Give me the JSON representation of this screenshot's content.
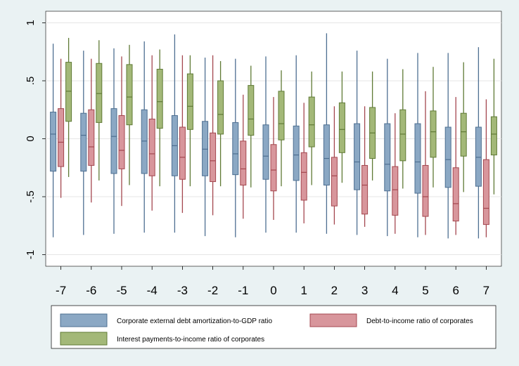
{
  "chart_data": {
    "type": "box",
    "x": [
      -7,
      -6,
      -5,
      -4,
      -3,
      -2,
      -1,
      0,
      1,
      2,
      3,
      4,
      5,
      6,
      7
    ],
    "x_tick_labels": [
      "-7",
      "-6",
      "-5",
      "-4",
      "-3",
      "-2",
      "-1",
      "0",
      "1",
      "2",
      "3",
      "4",
      "5",
      "6",
      "7"
    ],
    "ylim": [
      -1.1,
      1.1
    ],
    "y_ticks": [
      -1,
      -0.5,
      0,
      0.5,
      1
    ],
    "y_tick_labels": [
      "-1",
      "-.5",
      "0",
      ".5",
      "1"
    ],
    "grid": "horizontal",
    "legend_position": "bottom",
    "series": [
      {
        "name": "Corporate external debt amortization-to-GDP ratio",
        "color": "#4e6f91",
        "fill": "#8ba8c4",
        "boxes": [
          {
            "min": -0.85,
            "q1": -0.28,
            "median": 0.04,
            "q3": 0.23,
            "max": 0.82
          },
          {
            "min": -0.83,
            "q1": -0.28,
            "median": 0.03,
            "q3": 0.22,
            "max": 0.76
          },
          {
            "min": -0.82,
            "q1": -0.3,
            "median": 0.02,
            "q3": 0.26,
            "max": 0.78
          },
          {
            "min": -0.81,
            "q1": -0.3,
            "median": -0.02,
            "q3": 0.25,
            "max": 0.84
          },
          {
            "min": -0.81,
            "q1": -0.32,
            "median": -0.06,
            "q3": 0.2,
            "max": 0.9
          },
          {
            "min": -0.84,
            "q1": -0.32,
            "median": -0.09,
            "q3": 0.15,
            "max": 0.7
          },
          {
            "min": -0.85,
            "q1": -0.31,
            "median": -0.13,
            "q3": 0.14,
            "max": 0.69
          },
          {
            "min": -0.81,
            "q1": -0.35,
            "median": -0.15,
            "q3": 0.12,
            "max": 0.71
          },
          {
            "min": -0.81,
            "q1": -0.36,
            "median": -0.14,
            "q3": 0.11,
            "max": 0.72
          },
          {
            "min": -0.82,
            "q1": -0.4,
            "median": -0.17,
            "q3": 0.12,
            "max": 0.91
          },
          {
            "min": -0.83,
            "q1": -0.44,
            "median": -0.2,
            "q3": 0.13,
            "max": 0.76
          },
          {
            "min": -0.84,
            "q1": -0.45,
            "median": -0.22,
            "q3": 0.13,
            "max": 0.69
          },
          {
            "min": -0.85,
            "q1": -0.47,
            "median": -0.2,
            "q3": 0.13,
            "max": 0.74
          },
          {
            "min": -0.86,
            "q1": -0.42,
            "median": -0.18,
            "q3": 0.1,
            "max": 0.74
          },
          {
            "min": -0.86,
            "q1": -0.41,
            "median": -0.16,
            "q3": 0.1,
            "max": 0.79
          }
        ]
      },
      {
        "name": "Debt-to-income ratio of corporates",
        "color": "#a4474f",
        "fill": "#d8969c",
        "boxes": [
          {
            "min": -0.51,
            "q1": -0.24,
            "median": -0.03,
            "q3": 0.26,
            "max": 0.69
          },
          {
            "min": -0.55,
            "q1": -0.23,
            "median": -0.07,
            "q3": 0.25,
            "max": 0.69
          },
          {
            "min": -0.58,
            "q1": -0.26,
            "median": -0.1,
            "q3": 0.2,
            "max": 0.71
          },
          {
            "min": -0.62,
            "q1": -0.32,
            "median": -0.13,
            "q3": 0.17,
            "max": 0.72
          },
          {
            "min": -0.64,
            "q1": -0.35,
            "median": -0.16,
            "q3": 0.1,
            "max": 0.72
          },
          {
            "min": -0.66,
            "q1": -0.37,
            "median": -0.19,
            "q3": 0.05,
            "max": 0.72
          },
          {
            "min": -0.69,
            "q1": -0.4,
            "median": -0.26,
            "q3": -0.02,
            "max": 0.38
          },
          {
            "min": -0.7,
            "q1": -0.45,
            "median": -0.27,
            "q3": -0.05,
            "max": 0.36
          },
          {
            "min": -0.73,
            "q1": -0.53,
            "median": -0.29,
            "q3": -0.12,
            "max": 0.31
          },
          {
            "min": -0.74,
            "q1": -0.58,
            "median": -0.32,
            "q3": -0.16,
            "max": 0.28
          },
          {
            "min": -0.76,
            "q1": -0.65,
            "median": -0.4,
            "q3": -0.23,
            "max": 0.28
          },
          {
            "min": -0.82,
            "q1": -0.66,
            "median": -0.44,
            "q3": -0.24,
            "max": 0.22
          },
          {
            "min": -0.83,
            "q1": -0.67,
            "median": -0.5,
            "q3": -0.23,
            "max": 0.41
          },
          {
            "min": -0.83,
            "q1": -0.71,
            "median": -0.56,
            "q3": -0.25,
            "max": 0.36
          },
          {
            "min": -0.85,
            "q1": -0.74,
            "median": -0.6,
            "q3": -0.18,
            "max": 0.34
          }
        ]
      },
      {
        "name": "Interest payments-to-income ratio of corporates",
        "color": "#5f7a35",
        "fill": "#a3b878",
        "boxes": [
          {
            "min": -0.33,
            "q1": 0.15,
            "median": 0.41,
            "q3": 0.66,
            "max": 0.87
          },
          {
            "min": -0.36,
            "q1": 0.14,
            "median": 0.39,
            "q3": 0.65,
            "max": 0.85
          },
          {
            "min": -0.4,
            "q1": 0.12,
            "median": 0.36,
            "q3": 0.64,
            "max": 0.81
          },
          {
            "min": -0.41,
            "q1": 0.09,
            "median": 0.32,
            "q3": 0.6,
            "max": 0.77
          },
          {
            "min": -0.41,
            "q1": 0.08,
            "median": 0.28,
            "q3": 0.56,
            "max": 0.72
          },
          {
            "min": -0.41,
            "q1": 0.04,
            "median": 0.21,
            "q3": 0.5,
            "max": 0.67
          },
          {
            "min": -0.42,
            "q1": 0.03,
            "median": 0.17,
            "q3": 0.46,
            "max": 0.63
          },
          {
            "min": -0.41,
            "q1": -0.01,
            "median": 0.13,
            "q3": 0.41,
            "max": 0.59
          },
          {
            "min": -0.4,
            "q1": -0.07,
            "median": 0.12,
            "q3": 0.36,
            "max": 0.58
          },
          {
            "min": -0.38,
            "q1": -0.12,
            "median": 0.08,
            "q3": 0.31,
            "max": 0.58
          },
          {
            "min": -0.36,
            "q1": -0.17,
            "median": 0.05,
            "q3": 0.27,
            "max": 0.58
          },
          {
            "min": -0.43,
            "q1": -0.19,
            "median": 0.04,
            "q3": 0.25,
            "max": 0.6
          },
          {
            "min": -0.42,
            "q1": -0.16,
            "median": 0.06,
            "q3": 0.24,
            "max": 0.62
          },
          {
            "min": -0.46,
            "q1": -0.15,
            "median": 0.06,
            "q3": 0.22,
            "max": 0.66
          },
          {
            "min": -0.48,
            "q1": -0.14,
            "median": 0.04,
            "q3": 0.19,
            "max": 0.69
          }
        ]
      }
    ]
  }
}
